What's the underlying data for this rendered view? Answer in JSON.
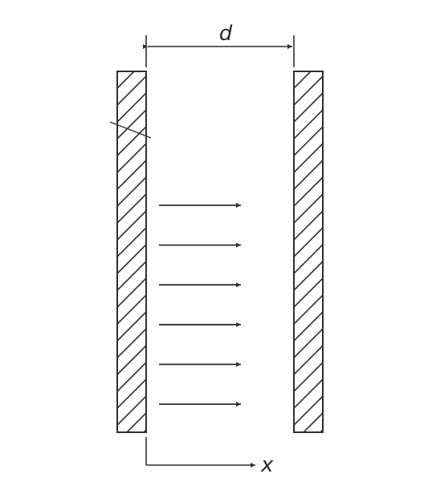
{
  "labels": {
    "plate_gap": "d",
    "axis": "x"
  },
  "field_arrows": {
    "count": 6
  },
  "colors": {
    "ink": "#2f2f2f",
    "background": "#ffffff"
  }
}
